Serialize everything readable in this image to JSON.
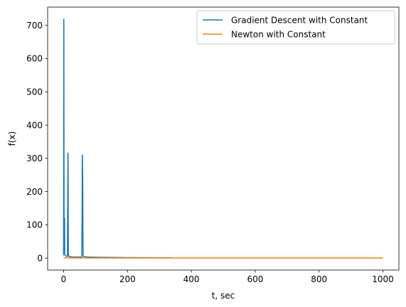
{
  "chart_data": {
    "type": "line",
    "title": "",
    "xlabel": "t, sec",
    "ylabel": "f(x)",
    "xlim": [
      -50,
      1050
    ],
    "ylim": [
      -36,
      755
    ],
    "xticks": [
      0,
      200,
      400,
      600,
      800,
      1000
    ],
    "yticks": [
      0,
      100,
      200,
      300,
      400,
      500,
      600,
      700
    ],
    "grid": false,
    "legend_position": "upper-right",
    "series": [
      {
        "name": "Gradient Descent with Constant",
        "color": "#1f77b4",
        "x": [
          0,
          0.2,
          0.5,
          0.8,
          1.0,
          1.3,
          1.6,
          2.0,
          2.4,
          2.8,
          3.2,
          3.6,
          4.0,
          5.0,
          6.0,
          8.0,
          10.0,
          12.0,
          13.0,
          13.5,
          14.0,
          14.5,
          15.0,
          16.0,
          17.0,
          20.0,
          30.0,
          40.0,
          50.0,
          57.0,
          58.0,
          58.5,
          59.0,
          59.5,
          60.0,
          60.5,
          61.0,
          62.0,
          65.0,
          80.0,
          100.0,
          150.0,
          200.0,
          250.0,
          300.0,
          340.0
        ],
        "y": [
          8,
          300,
          718,
          715,
          480,
          200,
          60,
          30,
          20,
          80,
          120,
          15,
          10,
          8,
          7,
          6,
          5,
          5,
          200,
          316,
          310,
          150,
          10,
          6,
          5,
          4,
          3,
          3,
          3,
          3,
          150,
          310,
          300,
          260,
          215,
          85,
          10,
          5,
          4,
          3,
          2.5,
          2,
          1.5,
          1.2,
          1.0,
          0.8
        ]
      },
      {
        "name": "Newton with Constant",
        "color": "#ff7f0e",
        "x": [
          0,
          1,
          2,
          4,
          8,
          15,
          30,
          60,
          100,
          200,
          300,
          400,
          500,
          600,
          700,
          800,
          900,
          1000
        ],
        "y": [
          2,
          1.5,
          1.2,
          1,
          0.8,
          0.6,
          0.5,
          0.4,
          0.3,
          0.3,
          0.3,
          0.3,
          0.3,
          0.3,
          0.3,
          0.3,
          0.3,
          0.3
        ]
      }
    ]
  }
}
